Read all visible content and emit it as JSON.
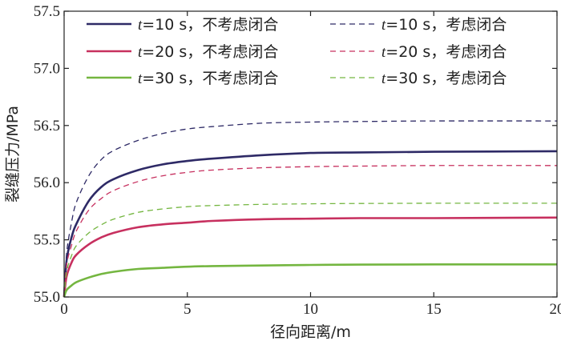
{
  "chart_data": {
    "type": "line",
    "xlabel": "径向距离/m",
    "ylabel": "裂缝压力/MPa",
    "xlim": [
      0,
      20
    ],
    "ylim": [
      55.0,
      57.5
    ],
    "x_ticks": [
      "0",
      "5",
      "10",
      "15",
      "20"
    ],
    "y_ticks": [
      "55.0",
      "55.5",
      "56.0",
      "56.5",
      "57.0",
      "57.5"
    ],
    "grid": false,
    "legend_position": "top",
    "series": [
      {
        "name": "t=10 s，不考虑闭合",
        "legend_var": "t",
        "legend_rest": "=10 s，不考虑闭合",
        "color": "#2e2a66",
        "style": "solid",
        "points": [
          [
            0,
            55.0
          ],
          [
            0.1,
            55.32
          ],
          [
            0.3,
            55.52
          ],
          [
            0.5,
            55.64
          ],
          [
            1,
            55.84
          ],
          [
            1.5,
            55.96
          ],
          [
            2,
            56.03
          ],
          [
            3,
            56.11
          ],
          [
            4,
            56.16
          ],
          [
            5,
            56.19
          ],
          [
            6,
            56.21
          ],
          [
            8,
            56.24
          ],
          [
            10,
            56.26
          ],
          [
            12,
            56.265
          ],
          [
            15,
            56.27
          ],
          [
            20,
            56.275
          ]
        ]
      },
      {
        "name": "t=10 s，考虑闭合",
        "legend_var": "t",
        "legend_rest": "=10 s，考虑闭合",
        "color": "#2e2a66",
        "style": "dashed",
        "points": [
          [
            0,
            55.0
          ],
          [
            0.1,
            55.38
          ],
          [
            0.3,
            55.65
          ],
          [
            0.5,
            55.83
          ],
          [
            1,
            56.06
          ],
          [
            1.5,
            56.2
          ],
          [
            2,
            56.28
          ],
          [
            3,
            56.37
          ],
          [
            4,
            56.43
          ],
          [
            5,
            56.47
          ],
          [
            6,
            56.49
          ],
          [
            8,
            56.52
          ],
          [
            10,
            56.53
          ],
          [
            12,
            56.535
          ],
          [
            15,
            56.54
          ],
          [
            20,
            56.54
          ]
        ]
      },
      {
        "name": "t=20 s，不考虑闭合",
        "legend_var": "t",
        "legend_rest": "=20 s，不考虑闭合",
        "color": "#c7305f",
        "style": "solid",
        "points": [
          [
            0,
            55.0
          ],
          [
            0.1,
            55.18
          ],
          [
            0.3,
            55.3
          ],
          [
            0.5,
            55.37
          ],
          [
            1,
            55.46
          ],
          [
            1.5,
            55.52
          ],
          [
            2,
            55.56
          ],
          [
            3,
            55.61
          ],
          [
            4,
            55.635
          ],
          [
            5,
            55.65
          ],
          [
            6,
            55.665
          ],
          [
            8,
            55.68
          ],
          [
            10,
            55.685
          ],
          [
            12,
            55.69
          ],
          [
            15,
            55.69
          ],
          [
            20,
            55.695
          ]
        ]
      },
      {
        "name": "t=20 s，考虑闭合",
        "legend_var": "t",
        "legend_rest": "=20 s，考虑闭合",
        "color": "#c7305f",
        "style": "dashed",
        "points": [
          [
            0,
            55.0
          ],
          [
            0.1,
            55.28
          ],
          [
            0.3,
            55.45
          ],
          [
            0.5,
            55.58
          ],
          [
            1,
            55.76
          ],
          [
            1.5,
            55.86
          ],
          [
            2,
            55.93
          ],
          [
            3,
            56.01
          ],
          [
            4,
            56.06
          ],
          [
            5,
            56.09
          ],
          [
            6,
            56.11
          ],
          [
            8,
            56.13
          ],
          [
            10,
            56.14
          ],
          [
            12,
            56.145
          ],
          [
            15,
            56.15
          ],
          [
            20,
            56.15
          ]
        ]
      },
      {
        "name": "t=30 s，不考虑闭合",
        "legend_var": "t",
        "legend_rest": "=30 s，不考虑闭合",
        "color": "#74b640",
        "style": "solid",
        "points": [
          [
            0,
            55.0
          ],
          [
            0.1,
            55.06
          ],
          [
            0.3,
            55.1
          ],
          [
            0.5,
            55.13
          ],
          [
            1,
            55.17
          ],
          [
            1.5,
            55.2
          ],
          [
            2,
            55.22
          ],
          [
            3,
            55.245
          ],
          [
            4,
            55.255
          ],
          [
            5,
            55.265
          ],
          [
            6,
            55.27
          ],
          [
            8,
            55.275
          ],
          [
            10,
            55.28
          ],
          [
            12,
            55.283
          ],
          [
            15,
            55.285
          ],
          [
            20,
            55.285
          ]
        ]
      },
      {
        "name": "t=30 s，考虑闭合",
        "legend_var": "t",
        "legend_rest": "=30 s，考虑闭合",
        "color": "#74b640",
        "style": "dashed",
        "points": [
          [
            0,
            55.0
          ],
          [
            0.1,
            55.22
          ],
          [
            0.3,
            55.36
          ],
          [
            0.5,
            55.45
          ],
          [
            1,
            55.56
          ],
          [
            1.5,
            55.63
          ],
          [
            2,
            55.68
          ],
          [
            3,
            55.74
          ],
          [
            4,
            55.77
          ],
          [
            5,
            55.79
          ],
          [
            6,
            55.8
          ],
          [
            8,
            55.81
          ],
          [
            10,
            55.815
          ],
          [
            12,
            55.818
          ],
          [
            15,
            55.82
          ],
          [
            20,
            55.82
          ]
        ]
      }
    ]
  }
}
